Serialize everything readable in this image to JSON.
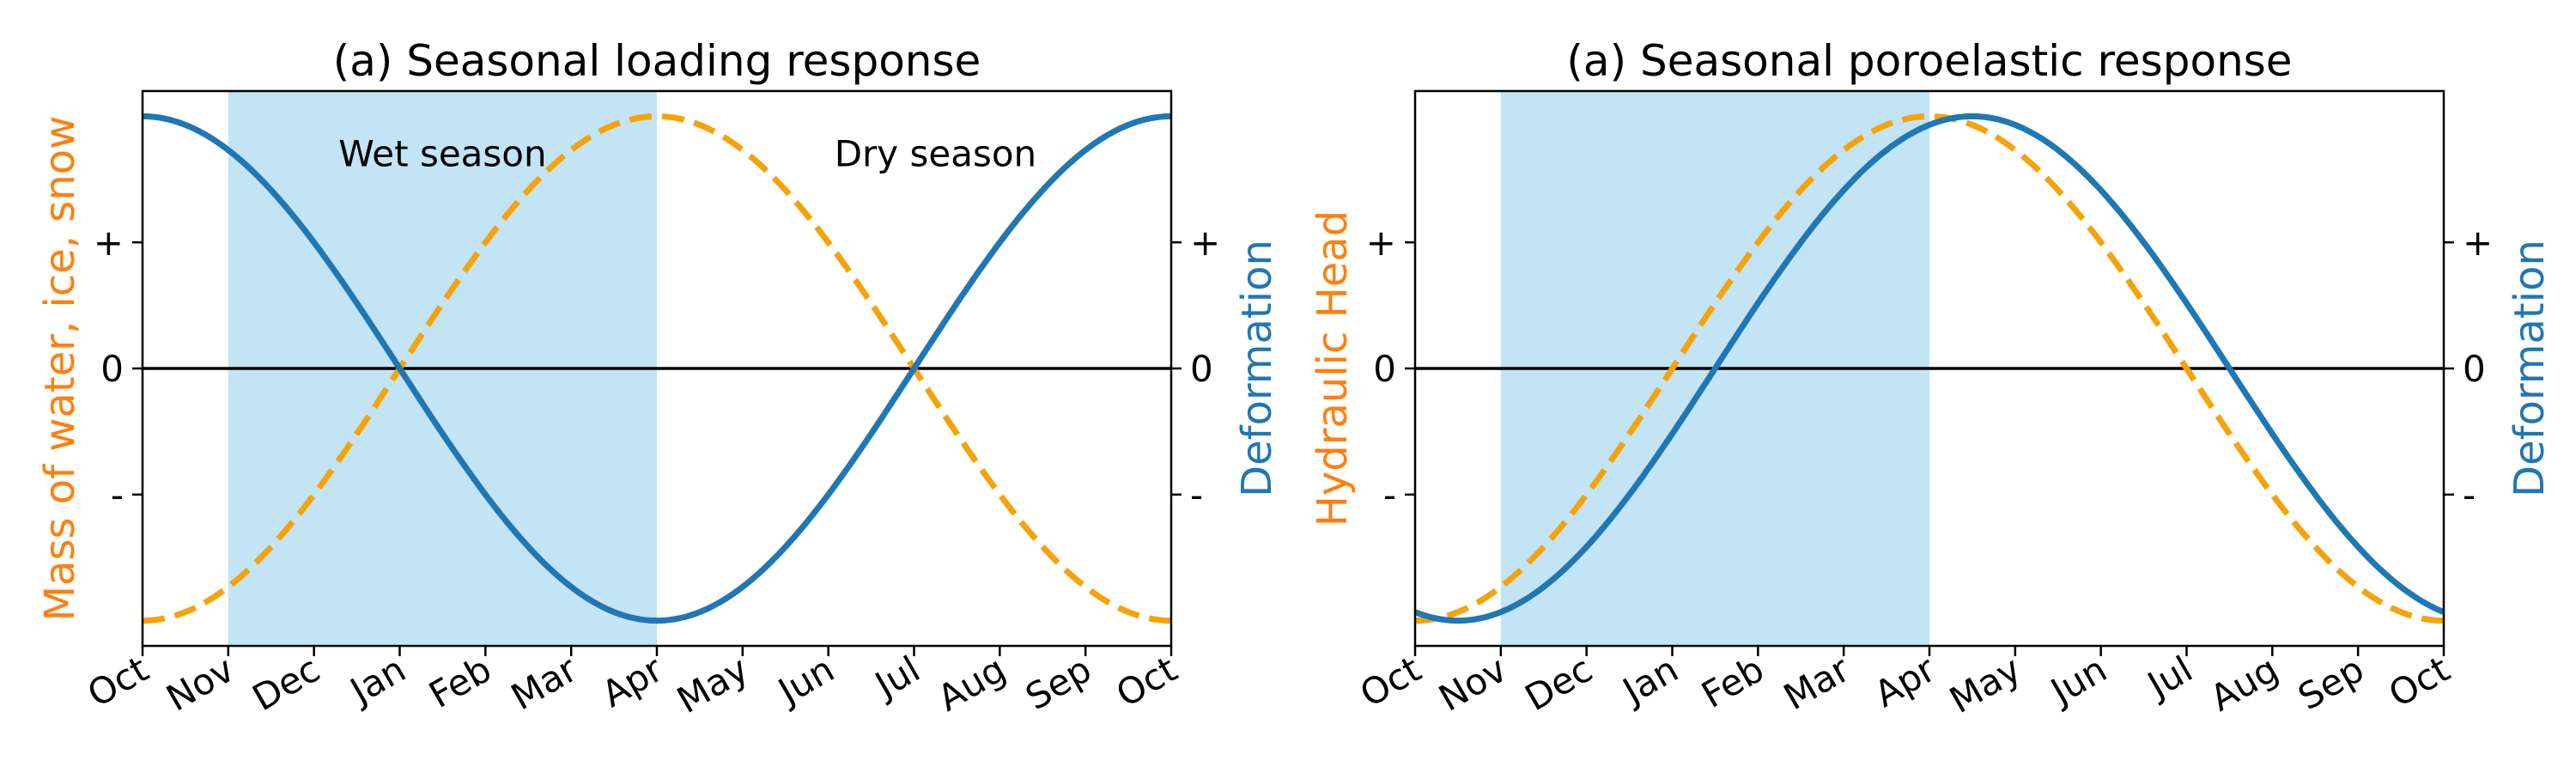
{
  "chart_data": [
    {
      "type": "line",
      "title": "(a) Seasonal loading response",
      "ylabel_left": "Mass of water, ice, snow",
      "ylabel_right": "Deformation",
      "x_months": [
        "Oct",
        "Nov",
        "Dec",
        "Jan",
        "Feb",
        "Mar",
        "Apr",
        "May",
        "Jun",
        "Jul",
        "Aug",
        "Sep",
        "Oct"
      ],
      "xlim": [
        0,
        12
      ],
      "ylim": [
        -1.1,
        1.1
      ],
      "y_ticks": [
        {
          "value": 0.5,
          "label": "+"
        },
        {
          "value": 0,
          "label": "0"
        },
        {
          "value": -0.5,
          "label": "-"
        }
      ],
      "shaded_region": {
        "x_start": 1,
        "x_end": 6,
        "color": "#c2e4f4"
      },
      "annotations": [
        {
          "text": "Wet season",
          "x": 3.5,
          "y": 0.85
        },
        {
          "text": "Dry season",
          "x": 9.25,
          "y": 0.85
        }
      ],
      "zero_line": true,
      "series": [
        {
          "axis": "left",
          "color": "#f5a30a",
          "style": "dashed",
          "phase_month": 6,
          "amplitude": 1
        },
        {
          "axis": "right",
          "color": "#1f77b4",
          "style": "solid",
          "phase_month": 0,
          "amplitude": 1
        }
      ]
    },
    {
      "type": "line",
      "title": "(a) Seasonal poroelastic response",
      "ylabel_left": "Hydraulic Head",
      "ylabel_right": "Deformation",
      "x_months": [
        "Oct",
        "Nov",
        "Dec",
        "Jan",
        "Feb",
        "Mar",
        "Apr",
        "May",
        "Jun",
        "Jul",
        "Aug",
        "Sep",
        "Oct"
      ],
      "xlim": [
        0,
        12
      ],
      "ylim": [
        -1.1,
        1.1
      ],
      "y_ticks": [
        {
          "value": 0.5,
          "label": "+"
        },
        {
          "value": 0,
          "label": "0"
        },
        {
          "value": -0.5,
          "label": "-"
        }
      ],
      "shaded_region": {
        "x_start": 1,
        "x_end": 6,
        "color": "#c2e4f4"
      },
      "annotations": [],
      "zero_line": true,
      "series": [
        {
          "axis": "left",
          "color": "#f5a30a",
          "style": "dashed",
          "phase_month": 6,
          "amplitude": 1
        },
        {
          "axis": "right",
          "color": "#1f77b4",
          "style": "solid",
          "phase_month": 6.5,
          "amplitude": 1
        }
      ]
    }
  ],
  "colors": {
    "orange": "#f5a30a",
    "orange_label": "#ff7f0e",
    "blue": "#1f77b4",
    "shade": "#c2e4f4"
  }
}
